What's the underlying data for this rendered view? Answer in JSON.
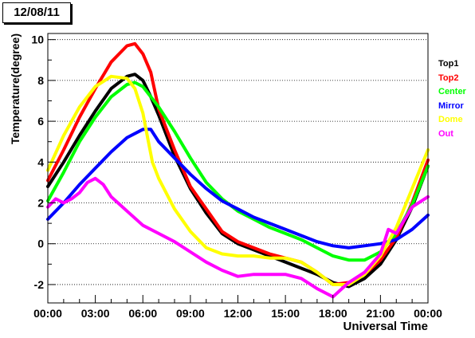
{
  "chart_data": {
    "type": "line",
    "title": "12/08/11",
    "xlabel": "Universal Time",
    "ylabel": "Temperature(degree)",
    "xlim": [
      0,
      24
    ],
    "ylim": [
      -2.9,
      10.3
    ],
    "grid": "horizontal-dotted",
    "legend_position": "right",
    "x_ticks": [
      {
        "value": 0,
        "label": "00:00"
      },
      {
        "value": 3,
        "label": "03:00"
      },
      {
        "value": 6,
        "label": "06:00"
      },
      {
        "value": 9,
        "label": "09:00"
      },
      {
        "value": 12,
        "label": "12:00"
      },
      {
        "value": 15,
        "label": "15:00"
      },
      {
        "value": 18,
        "label": "18:00"
      },
      {
        "value": 21,
        "label": "21:00"
      },
      {
        "value": 24,
        "label": "00:00"
      }
    ],
    "y_ticks": [
      {
        "value": -2,
        "label": "-2"
      },
      {
        "value": 0,
        "label": "0"
      },
      {
        "value": 2,
        "label": "2"
      },
      {
        "value": 4,
        "label": "4"
      },
      {
        "value": 6,
        "label": "6"
      },
      {
        "value": 8,
        "label": "8"
      },
      {
        "value": 10,
        "label": "10"
      }
    ],
    "series": [
      {
        "name": "Top1",
        "color": "#000000",
        "x": [
          0,
          1,
          2,
          3,
          4,
          5,
          5.5,
          6,
          6.5,
          7,
          8,
          9,
          10,
          11,
          12,
          13,
          14,
          15,
          16,
          17,
          18,
          19,
          20,
          21,
          22,
          23,
          24
        ],
        "y": [
          2.8,
          4.0,
          5.3,
          6.5,
          7.6,
          8.2,
          8.3,
          8.0,
          7.2,
          6.3,
          4.3,
          2.7,
          1.5,
          0.5,
          0.0,
          -0.3,
          -0.6,
          -0.9,
          -1.2,
          -1.5,
          -1.9,
          -2.1,
          -1.7,
          -1.0,
          0.2,
          1.8,
          3.8
        ]
      },
      {
        "name": "Top2",
        "color": "#ff0000",
        "x": [
          0,
          1,
          2,
          3,
          4,
          5,
          5.5,
          6,
          6.5,
          7,
          8,
          9,
          10,
          11,
          12,
          13,
          14,
          15,
          16,
          17,
          18,
          19,
          20,
          21,
          22,
          23,
          24
        ],
        "y": [
          3.1,
          4.6,
          6.2,
          7.6,
          8.9,
          9.7,
          9.8,
          9.3,
          8.4,
          6.6,
          4.6,
          2.8,
          1.7,
          0.6,
          0.1,
          -0.2,
          -0.5,
          -0.7,
          -0.9,
          -1.4,
          -2.0,
          -1.9,
          -1.5,
          -0.8,
          0.3,
          2.0,
          4.1
        ]
      },
      {
        "name": "Center",
        "color": "#00ff00",
        "x": [
          0,
          1,
          2,
          3,
          4,
          5,
          5.5,
          6,
          7,
          8,
          9,
          10,
          11,
          12,
          13,
          14,
          15,
          16,
          17,
          18,
          19,
          20,
          21,
          22,
          23,
          24
        ],
        "y": [
          2.1,
          3.5,
          5.0,
          6.2,
          7.2,
          7.8,
          7.9,
          7.7,
          6.7,
          5.5,
          4.2,
          3.0,
          2.2,
          1.6,
          1.2,
          0.8,
          0.5,
          0.2,
          -0.2,
          -0.6,
          -0.8,
          -0.8,
          -0.4,
          0.5,
          1.9,
          3.8
        ]
      },
      {
        "name": "Mirror",
        "color": "#0000ff",
        "x": [
          0,
          1,
          2,
          3,
          4,
          5,
          6,
          6.5,
          7,
          8,
          9,
          10,
          11,
          12,
          13,
          14,
          15,
          16,
          17,
          18,
          19,
          20,
          21,
          22,
          23,
          24
        ],
        "y": [
          1.2,
          2.0,
          2.9,
          3.7,
          4.5,
          5.2,
          5.6,
          5.6,
          5.0,
          4.2,
          3.4,
          2.7,
          2.1,
          1.7,
          1.3,
          1.0,
          0.7,
          0.4,
          0.1,
          -0.1,
          -0.2,
          -0.1,
          0.0,
          0.2,
          0.7,
          1.4
        ]
      },
      {
        "name": "Dome",
        "color": "#ffff00",
        "x": [
          0,
          1,
          2,
          3,
          4,
          5,
          5.5,
          6,
          6.3,
          6.6,
          7,
          8,
          9,
          10,
          11,
          12,
          13,
          14,
          15,
          16,
          17,
          18,
          19,
          20,
          21,
          22,
          23,
          24
        ],
        "y": [
          3.6,
          5.3,
          6.7,
          7.7,
          8.2,
          8.1,
          7.6,
          6.4,
          5.2,
          4.0,
          3.2,
          1.7,
          0.6,
          -0.2,
          -0.5,
          -0.6,
          -0.6,
          -0.7,
          -0.7,
          -0.9,
          -1.4,
          -2.0,
          -2.0,
          -1.5,
          -0.6,
          0.8,
          2.7,
          4.6
        ]
      },
      {
        "name": "Out",
        "color": "#ff00ff",
        "x": [
          0,
          0.5,
          1,
          1.5,
          2,
          2.5,
          3,
          3.5,
          4,
          5,
          6,
          7,
          8,
          9,
          10,
          11,
          12,
          13,
          14,
          15,
          16,
          17,
          18,
          19,
          20,
          21,
          21.5,
          22,
          23,
          24
        ],
        "y": [
          1.8,
          2.2,
          2.0,
          2.2,
          2.5,
          3.0,
          3.2,
          2.9,
          2.3,
          1.6,
          0.9,
          0.5,
          0.1,
          -0.4,
          -0.9,
          -1.3,
          -1.6,
          -1.5,
          -1.5,
          -1.5,
          -1.7,
          -2.2,
          -2.6,
          -1.9,
          -1.4,
          -0.5,
          0.7,
          0.5,
          1.8,
          2.3
        ]
      }
    ]
  }
}
